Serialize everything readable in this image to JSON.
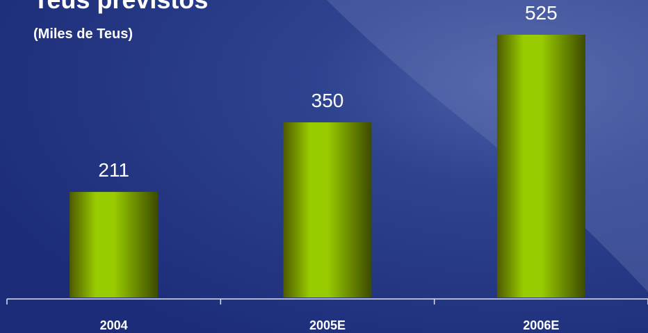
{
  "chart_data": {
    "type": "bar",
    "title": "Teus previstos",
    "subtitle": "(Miles de Teus)",
    "categories": [
      "2004",
      "2005E",
      "2006E"
    ],
    "values": [
      211,
      350,
      525
    ],
    "color": "#99cc00"
  }
}
